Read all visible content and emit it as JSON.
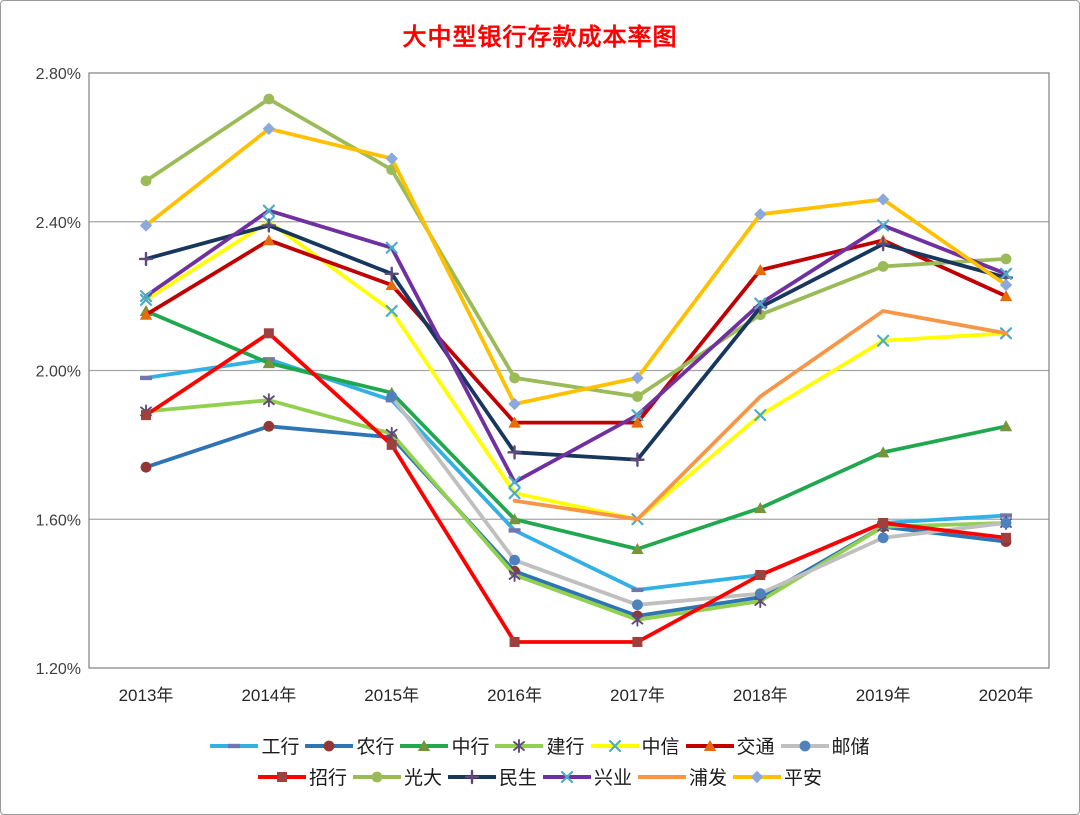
{
  "figure": {
    "title_color": "#FF0000",
    "background": "#FFFFFF",
    "gridline_color": "#A6A6A6",
    "plot_border_color": "#808080"
  },
  "chart_data": {
    "type": "line",
    "title": "大中型银行存款成本率图",
    "unit": "%",
    "categories": [
      "2013年",
      "2014年",
      "2015年",
      "2016年",
      "2017年",
      "2018年",
      "2019年",
      "2020年"
    ],
    "y_axis": {
      "min": 1.2,
      "max": 2.8,
      "step": 0.4,
      "tick_labels": [
        "2.80%",
        "2.40%",
        "2.00%",
        "1.60%",
        "1.20%"
      ]
    },
    "grid": true,
    "legend_position": "bottom",
    "legend_rows": [
      [
        "工行",
        "农行",
        "中行",
        "建行",
        "中信",
        "交通",
        "邮储"
      ],
      [
        "招行",
        "光大",
        "民生",
        "兴业",
        "浦发",
        "平安"
      ]
    ],
    "series": [
      {
        "name": "工行",
        "line_color": "#33B1E4",
        "marker": "dash",
        "marker_color": "#7077AD",
        "values": [
          1.98,
          2.03,
          1.92,
          1.57,
          1.41,
          1.45,
          1.59,
          1.61
        ]
      },
      {
        "name": "农行",
        "line_color": "#2E75B6",
        "marker": "circle",
        "marker_color": "#943634",
        "values": [
          1.74,
          1.85,
          1.82,
          1.46,
          1.34,
          1.39,
          1.58,
          1.54
        ]
      },
      {
        "name": "中行",
        "line_color": "#21A84F",
        "marker": "triangle",
        "marker_color": "#77933C",
        "values": [
          2.16,
          2.02,
          1.94,
          1.6,
          1.52,
          1.63,
          1.78,
          1.85
        ]
      },
      {
        "name": "建行",
        "line_color": "#92D050",
        "marker": "asterisk",
        "marker_color": "#604A7B",
        "values": [
          1.89,
          1.92,
          1.83,
          1.45,
          1.33,
          1.38,
          1.58,
          1.59
        ]
      },
      {
        "name": "中信",
        "line_color": "#FFFF00",
        "marker": "x",
        "marker_color": "#4BACC6",
        "values": [
          2.19,
          2.4,
          2.16,
          1.67,
          1.6,
          1.88,
          2.08,
          2.1
        ]
      },
      {
        "name": "交通",
        "line_color": "#C00000",
        "marker": "triangle",
        "marker_color": "#E46C0A",
        "values": [
          2.15,
          2.35,
          2.23,
          1.86,
          1.86,
          2.27,
          2.35,
          2.2
        ]
      },
      {
        "name": "邮储",
        "line_color": "#BFBFBF",
        "marker": "circle",
        "marker_color": "#4F81BD",
        "values": [
          null,
          null,
          1.93,
          1.49,
          1.37,
          1.4,
          1.55,
          1.59
        ]
      },
      {
        "name": "招行",
        "line_color": "#FF0000",
        "marker": "square",
        "marker_color": "#9E413E",
        "values": [
          1.88,
          2.1,
          1.8,
          1.27,
          1.27,
          1.45,
          1.59,
          1.55
        ]
      },
      {
        "name": "光大",
        "line_color": "#9BBB59",
        "marker": "circle",
        "marker_color": "#9BBB59",
        "values": [
          2.51,
          2.73,
          2.54,
          1.98,
          1.93,
          2.15,
          2.28,
          2.3
        ]
      },
      {
        "name": "民生",
        "line_color": "#17375E",
        "marker": "plus",
        "marker_color": "#604A7B",
        "values": [
          2.3,
          2.39,
          2.26,
          1.78,
          1.76,
          2.17,
          2.34,
          2.25
        ]
      },
      {
        "name": "兴业",
        "line_color": "#7030A0",
        "marker": "x",
        "marker_color": "#4BACC6",
        "values": [
          2.2,
          2.43,
          2.33,
          1.7,
          1.88,
          2.18,
          2.39,
          2.26
        ]
      },
      {
        "name": "浦发",
        "line_color": "#F79646",
        "marker": "none",
        "marker_color": "#F79646",
        "values": [
          null,
          null,
          null,
          1.65,
          1.6,
          1.93,
          2.16,
          2.1
        ]
      },
      {
        "name": "平安",
        "line_color": "#FFC000",
        "marker": "diamond",
        "marker_color": "#8DA9DB",
        "values": [
          2.39,
          2.65,
          2.57,
          1.91,
          1.98,
          2.42,
          2.46,
          2.23
        ]
      }
    ]
  }
}
